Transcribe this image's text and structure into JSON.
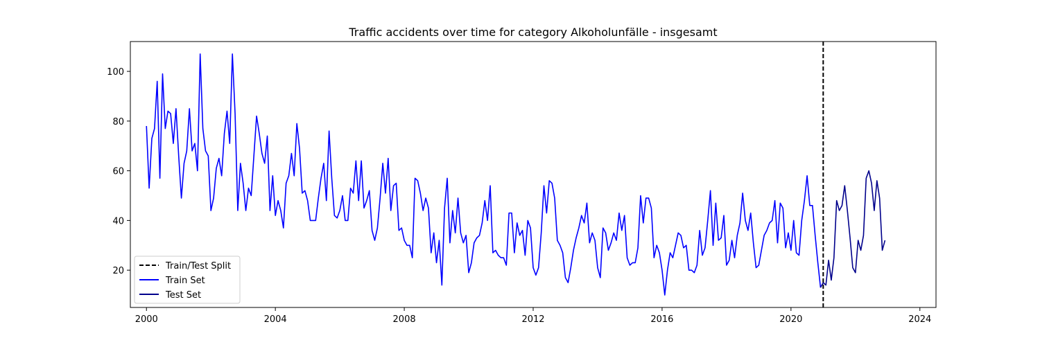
{
  "chart_data": {
    "type": "line",
    "title": "Traffic accidents over time for category Alkoholunfälle - insgesamt",
    "xlabel": "",
    "ylabel": "",
    "x_ticks": [
      "2000",
      "2004",
      "2008",
      "2012",
      "2016",
      "2020",
      "2024"
    ],
    "y_ticks": [
      "20",
      "40",
      "60",
      "80",
      "100"
    ],
    "xlim": [
      "1999-07",
      "2024-07"
    ],
    "ylim": [
      5,
      112
    ],
    "grid": false,
    "legend_placement": "lower-left",
    "split_date": "2021-01",
    "series": [
      {
        "name": "Train Set",
        "color": "#0000ff",
        "start": "2000-01",
        "values": [
          78,
          53,
          73,
          77,
          96,
          57,
          99,
          77,
          84,
          83,
          71,
          85,
          66,
          49,
          63,
          68,
          85,
          68,
          71,
          60,
          107,
          77,
          68,
          66,
          44,
          49,
          61,
          65,
          58,
          75,
          84,
          71,
          107,
          83,
          44,
          63,
          55,
          44,
          53,
          50,
          66,
          82,
          75,
          67,
          63,
          74,
          44,
          58,
          42,
          48,
          44,
          37,
          55,
          58,
          67,
          58,
          79,
          69,
          51,
          52,
          48,
          40,
          40,
          40,
          49,
          57,
          63,
          48,
          76,
          57,
          42,
          41,
          44,
          50,
          40,
          40,
          53,
          51,
          64,
          48,
          64,
          45,
          48,
          52,
          36,
          32,
          37,
          49,
          63,
          51,
          65,
          44,
          54,
          55,
          36,
          37,
          32,
          30,
          30,
          25,
          57,
          56,
          51,
          44,
          49,
          45,
          27,
          35,
          23,
          32,
          14,
          45,
          57,
          31,
          44,
          35,
          49,
          35,
          31,
          34,
          19,
          23,
          31,
          33,
          34,
          39,
          48,
          40,
          54,
          27,
          28,
          26,
          25,
          25,
          22,
          43,
          43,
          27,
          39,
          34,
          36,
          26,
          40,
          37,
          21,
          18,
          21,
          35,
          54,
          43,
          56,
          55,
          49,
          32,
          30,
          27,
          17,
          15,
          21,
          28,
          33,
          37,
          42,
          39,
          47,
          31,
          35,
          32,
          21,
          17,
          37,
          35,
          28,
          31,
          35,
          32,
          43,
          36,
          42,
          25,
          22,
          23,
          23,
          29,
          50,
          39,
          49,
          49,
          45,
          25,
          30,
          27,
          20,
          10,
          20,
          27,
          25,
          30,
          35,
          34,
          29,
          30,
          20,
          20,
          19,
          22,
          36,
          26,
          29,
          40,
          52,
          30,
          47,
          32,
          33,
          42,
          22,
          24,
          32,
          25,
          34,
          39,
          51,
          40,
          36,
          43,
          31,
          21,
          22,
          28,
          34,
          36,
          39,
          40,
          48,
          31,
          47,
          45,
          29,
          35,
          28,
          40,
          27,
          26,
          40,
          48,
          58,
          46,
          46,
          34,
          23,
          13
        ]
      },
      {
        "name": "Test Set",
        "color": "#00008b",
        "start": "2021-01",
        "values": [
          15,
          14,
          24,
          16,
          25,
          48,
          44,
          46,
          54,
          44,
          33,
          21,
          19,
          32,
          28,
          34,
          57,
          60,
          55,
          44,
          56,
          49,
          28,
          32
        ]
      }
    ],
    "legend": [
      {
        "label": "Train/Test Split",
        "style": "dashed",
        "color": "#000000"
      },
      {
        "label": "Train Set",
        "style": "solid",
        "color": "#0000ff"
      },
      {
        "label": "Test Set",
        "style": "solid",
        "color": "#00008b"
      }
    ]
  }
}
